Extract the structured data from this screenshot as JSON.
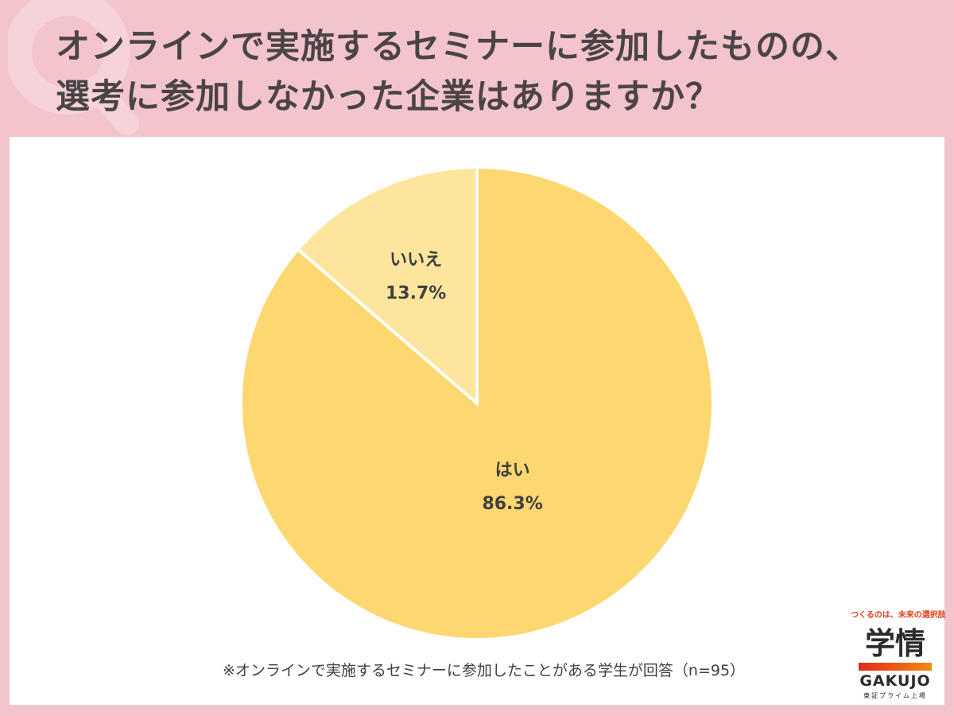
{
  "header": {
    "title_line1": "オンラインで実施するセミナーに参加したものの、",
    "title_line2": "選考に参加しなかった企業はありますか？"
  },
  "chart_data": {
    "type": "pie",
    "slices": [
      {
        "label": "はい",
        "value": 86.3,
        "display": "86.3%",
        "color": "#fdd76f"
      },
      {
        "label": "いいえ",
        "value": 13.7,
        "display": "13.7%",
        "color": "#fde59e"
      }
    ],
    "start_angle": "12 o'clock",
    "direction": "clockwise",
    "legend": "none"
  },
  "footnote": "※オンラインで実施するセミナーに参加したことがある学生が回答（n=95）",
  "logo": {
    "tagline": "つくるのは、未来の選択肢",
    "mark": "学情",
    "name": "GAKUJO",
    "sub": "東証プライム上場"
  },
  "colors": {
    "background": "#f3c4cb",
    "panel": "#ffffff",
    "title_text": "#4a4446"
  }
}
